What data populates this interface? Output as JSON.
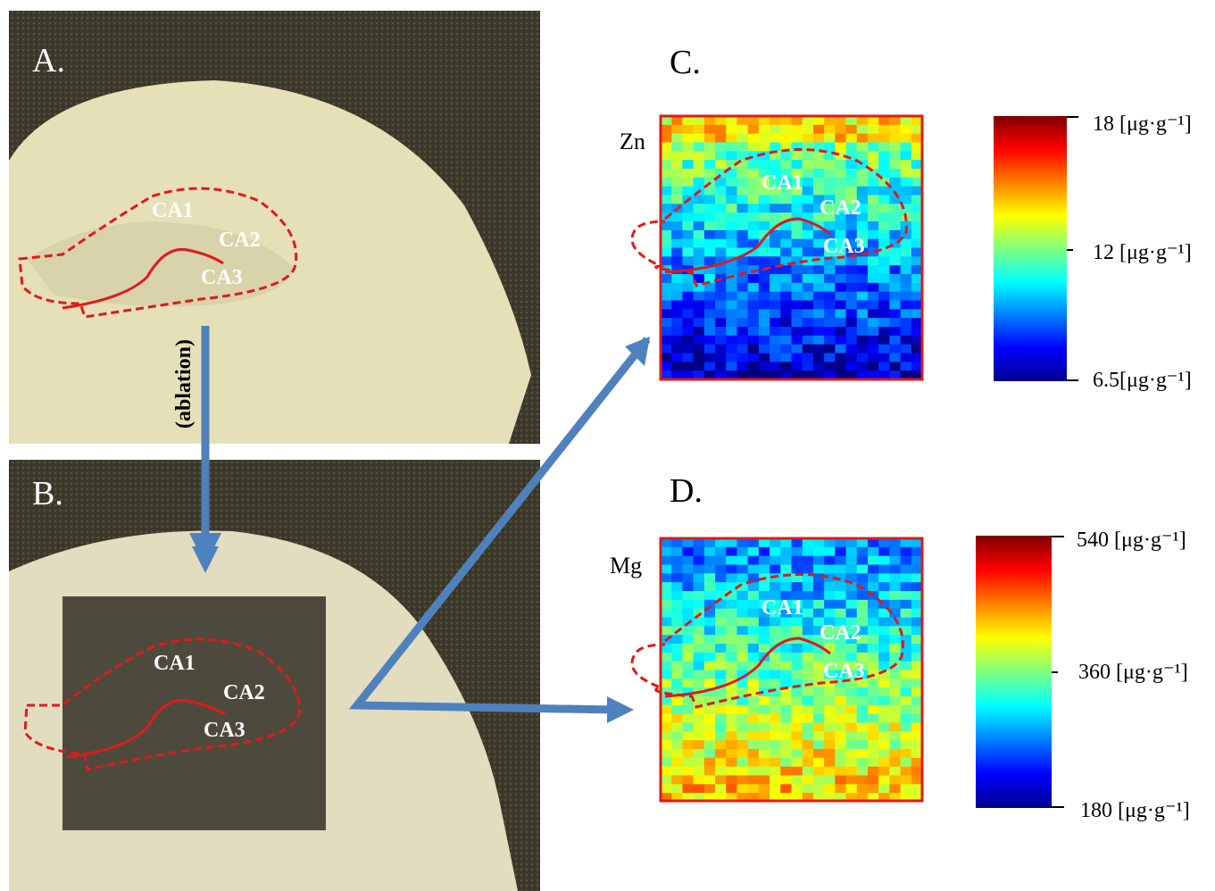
{
  "panels": [
    {
      "label": "A.",
      "regions": [
        "CA1",
        "CA2",
        "CA3"
      ]
    },
    {
      "label": "B.",
      "regions": [
        "CA1",
        "CA2",
        "CA3"
      ]
    },
    {
      "label": "C.",
      "element": "Zn",
      "regions": [
        "CA1",
        "CA2",
        "CA3"
      ],
      "colorbar": [
        "18 [μg·g⁻¹]",
        "12 [μg·g⁻¹]",
        "6.5[μg·g⁻¹]"
      ]
    },
    {
      "label": "D.",
      "element": "Mg",
      "regions": [
        "CA1",
        "CA2",
        "CA3"
      ],
      "colorbar": [
        "540 [μg·g⁻¹]",
        "360 [μg·g⁻¹]",
        "180 [μg·g⁻¹]"
      ]
    }
  ],
  "arrow_label": "(ablation)"
}
